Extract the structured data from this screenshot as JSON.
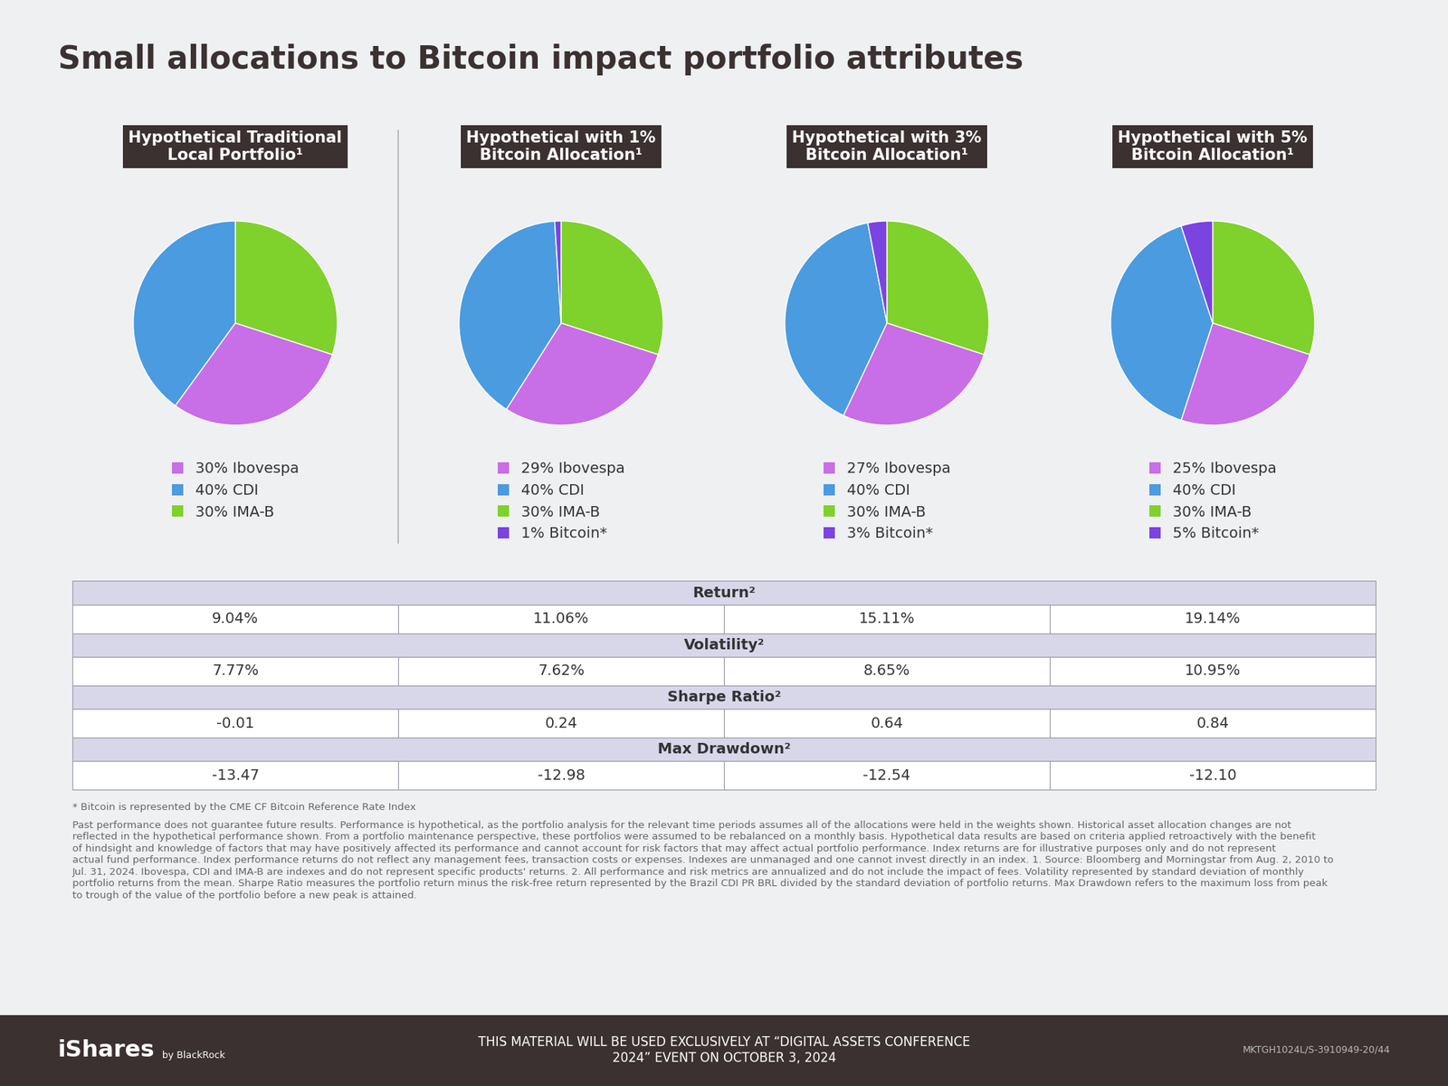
{
  "title": "Small allocations to Bitcoin impact portfolio attributes",
  "chart_data": [
    {
      "type": "pie",
      "title": "Hypothetical Traditional Local Portfolio¹",
      "categories": [
        "30% Ibovespa",
        "40% CDI",
        "30% IMA-B"
      ],
      "values": [
        30,
        40,
        30
      ],
      "colors": [
        "#c86ee6",
        "#4a9be0",
        "#7fd12c"
      ]
    },
    {
      "type": "pie",
      "title": "Hypothetical with 1% Bitcoin Allocation¹",
      "categories": [
        "29% Ibovespa",
        "40% CDI",
        "30% IMA-B",
        "1% Bitcoin*"
      ],
      "values": [
        29,
        40,
        30,
        1
      ],
      "colors": [
        "#c86ee6",
        "#4a9be0",
        "#7fd12c",
        "#7b44e0"
      ]
    },
    {
      "type": "pie",
      "title": "Hypothetical with 3% Bitcoin Allocation¹",
      "categories": [
        "27% Ibovespa",
        "40% CDI",
        "30% IMA-B",
        "3% Bitcoin*"
      ],
      "values": [
        27,
        40,
        30,
        3
      ],
      "colors": [
        "#c86ee6",
        "#4a9be0",
        "#7fd12c",
        "#7b44e0"
      ]
    },
    {
      "type": "pie",
      "title": "Hypothetical with 5% Bitcoin Allocation¹",
      "categories": [
        "25% Ibovespa",
        "40% CDI",
        "30% IMA-B",
        "5% Bitcoin*"
      ],
      "values": [
        25,
        40,
        30,
        5
      ],
      "colors": [
        "#c86ee6",
        "#4a9be0",
        "#7fd12c",
        "#7b44e0"
      ]
    }
  ],
  "table": [
    {
      "header": "Return²",
      "cells": [
        "9.04%",
        "11.06%",
        "15.11%",
        "19.14%"
      ]
    },
    {
      "header": "Volatility²",
      "cells": [
        "7.77%",
        "7.62%",
        "8.65%",
        "10.95%"
      ]
    },
    {
      "header": "Sharpe Ratio²",
      "cells": [
        "-0.01",
        "0.24",
        "0.64",
        "0.84"
      ]
    },
    {
      "header": "Max Drawdown²",
      "cells": [
        "-13.47",
        "-12.98",
        "-12.54",
        "-12.10"
      ]
    }
  ],
  "footnotes": [
    "* Bitcoin is represented by the CME CF Bitcoin Reference Rate Index",
    "Past performance does not guarantee future results. Performance is hypothetical, as the portfolio analysis for the relevant time periods assumes all of the allocations were held in the weights shown. Historical asset allocation changes are not reflected in the hypothetical performance shown. From a portfolio maintenance perspective, these portfolios were assumed to be rebalanced on a monthly basis. Hypothetical data results are based on criteria applied retroactively with the benefit of hindsight and knowledge of factors that may have positively affected its performance and cannot account for risk factors that may affect actual portfolio performance. Index returns are for illustrative purposes only and do not represent actual fund performance. Index performance returns do not reflect any management fees, transaction costs or expenses. Indexes are unmanaged and one cannot invest directly in an index. 1. Source: Bloomberg and Morningstar from Aug. 2, 2010 to Jul. 31, 2024. Ibovespa, CDI and IMA-B are indexes and do not represent specific products' returns. 2. All performance and risk metrics are annualized and do not include the impact of fees. Volatility represented by standard deviation of monthly portfolio returns from the mean. Sharpe Ratio measures the portfolio return minus the risk-free return represented by the Brazil CDI PR BRL divided by the standard deviation of portfolio returns. Max Drawdown refers to the maximum loss from peak to trough of the value of the portfolio before a new peak is attained."
  ],
  "footer": {
    "brand": "iShares",
    "brand_sub": "by BlackRock",
    "notice": "THIS MATERIAL WILL BE USED EXCLUSIVELY AT “DIGITAL ASSETS CONFERENCE 2024” EVENT ON OCTOBER 3, 2024",
    "code": "MKTGH1024L/S-3910949-20/44"
  }
}
